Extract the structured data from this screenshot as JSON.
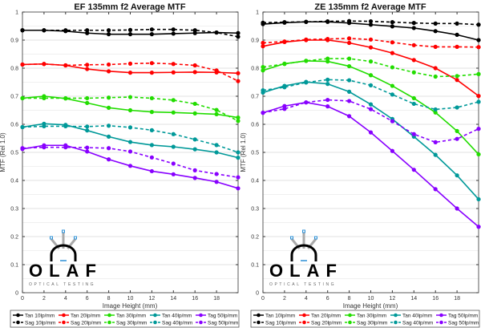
{
  "chart_data": [
    {
      "type": "line",
      "title": "EF 135mm f2 Average MTF",
      "xlabel": "Image Height (mm)",
      "ylabel": "MTF (Rel 1.0)",
      "xlim": [
        0,
        20
      ],
      "ylim": [
        0,
        1
      ],
      "xticks": [
        "0",
        "2",
        "4",
        "6",
        "8",
        "10",
        "12",
        "14",
        "16",
        "18"
      ],
      "yticks": [
        "0",
        "0.1",
        "0.2",
        "0.3",
        "0.4",
        "0.5",
        "0.6",
        "0.7",
        "0.8",
        "0.9",
        "1"
      ],
      "grid": true,
      "legend_position": "bottom",
      "x": [
        0,
        2,
        4,
        6,
        8,
        10,
        12,
        14,
        16,
        18,
        20
      ],
      "series": [
        {
          "name": "Tan 10lp/mm",
          "color": "#000000",
          "style": "solid",
          "values": [
            0.935,
            0.935,
            0.932,
            0.925,
            0.921,
            0.921,
            0.921,
            0.923,
            0.925,
            0.927,
            0.925
          ]
        },
        {
          "name": "Sag 10lp/mm",
          "color": "#000000",
          "style": "dashed",
          "values": [
            0.935,
            0.935,
            0.935,
            0.935,
            0.935,
            0.936,
            0.938,
            0.938,
            0.935,
            0.927,
            0.912
          ]
        },
        {
          "name": "Tan 20lp/mm",
          "color": "#ff0000",
          "style": "solid",
          "values": [
            0.813,
            0.815,
            0.81,
            0.797,
            0.789,
            0.784,
            0.784,
            0.785,
            0.786,
            0.785,
            0.782
          ]
        },
        {
          "name": "Sag 20lp/mm",
          "color": "#ff0000",
          "style": "dashed",
          "values": [
            0.813,
            0.815,
            0.81,
            0.812,
            0.813,
            0.816,
            0.818,
            0.815,
            0.81,
            0.792,
            0.754
          ]
        },
        {
          "name": "Tan 30lp/mm",
          "color": "#22dd00",
          "style": "solid",
          "values": [
            0.693,
            0.7,
            0.692,
            0.676,
            0.659,
            0.65,
            0.644,
            0.642,
            0.639,
            0.636,
            0.624
          ]
        },
        {
          "name": "Sag 30lp/mm",
          "color": "#22dd00",
          "style": "dashed",
          "values": [
            0.693,
            0.693,
            0.693,
            0.693,
            0.695,
            0.697,
            0.693,
            0.686,
            0.673,
            0.651,
            0.612
          ]
        },
        {
          "name": "Tan 40lp/mm",
          "color": "#009999",
          "style": "solid",
          "values": [
            0.59,
            0.602,
            0.598,
            0.578,
            0.556,
            0.537,
            0.526,
            0.52,
            0.511,
            0.5,
            0.481
          ]
        },
        {
          "name": "Sag 40lp/mm",
          "color": "#009999",
          "style": "dashed",
          "values": [
            0.59,
            0.593,
            0.593,
            0.592,
            0.595,
            0.589,
            0.579,
            0.565,
            0.546,
            0.526,
            0.5
          ]
        },
        {
          "name": "Tag 50lp/mm",
          "color": "#8800ff",
          "style": "solid",
          "values": [
            0.512,
            0.525,
            0.525,
            0.503,
            0.475,
            0.452,
            0.433,
            0.422,
            0.409,
            0.395,
            0.372
          ]
        },
        {
          "name": "Sag 50lp/mm",
          "color": "#8800ff",
          "style": "dashed",
          "values": [
            0.515,
            0.518,
            0.518,
            0.517,
            0.515,
            0.503,
            0.482,
            0.46,
            0.436,
            0.423,
            0.411
          ]
        }
      ]
    },
    {
      "type": "line",
      "title": "ZE 135mm f2 Average MTF",
      "xlabel": "Image Height (mm)",
      "ylabel": "MTF (Rel 1.0)",
      "xlim": [
        0,
        20
      ],
      "ylim": [
        0,
        1
      ],
      "xticks": [
        "0",
        "2",
        "4",
        "6",
        "8",
        "10",
        "12",
        "14",
        "16",
        "18"
      ],
      "yticks": [
        "0",
        "0.1",
        "0.2",
        "0.3",
        "0.4",
        "0.5",
        "0.6",
        "0.7",
        "0.8",
        "0.9",
        "1"
      ],
      "grid": true,
      "legend_position": "bottom",
      "x": [
        0,
        2,
        4,
        6,
        8,
        10,
        12,
        14,
        16,
        18,
        20
      ],
      "series": [
        {
          "name": "Tan 10lp/mm",
          "color": "#000000",
          "style": "solid",
          "values": [
            0.957,
            0.962,
            0.965,
            0.965,
            0.961,
            0.955,
            0.949,
            0.943,
            0.932,
            0.919,
            0.9
          ]
        },
        {
          "name": "Sag 10lp/mm",
          "color": "#000000",
          "style": "dashed",
          "values": [
            0.962,
            0.964,
            0.965,
            0.967,
            0.968,
            0.967,
            0.964,
            0.961,
            0.959,
            0.959,
            0.955
          ]
        },
        {
          "name": "Tan 20lp/mm",
          "color": "#ff0000",
          "style": "solid",
          "values": [
            0.878,
            0.893,
            0.9,
            0.9,
            0.89,
            0.874,
            0.854,
            0.829,
            0.8,
            0.758,
            0.701
          ]
        },
        {
          "name": "Sag 20lp/mm",
          "color": "#ff0000",
          "style": "dashed",
          "values": [
            0.89,
            0.895,
            0.902,
            0.904,
            0.906,
            0.902,
            0.892,
            0.882,
            0.876,
            0.876,
            0.875
          ]
        },
        {
          "name": "Tan 30lp/mm",
          "color": "#22dd00",
          "style": "solid",
          "values": [
            0.792,
            0.816,
            0.826,
            0.824,
            0.807,
            0.775,
            0.737,
            0.693,
            0.642,
            0.576,
            0.493
          ]
        },
        {
          "name": "Sag 30lp/mm",
          "color": "#22dd00",
          "style": "dashed",
          "values": [
            0.804,
            0.815,
            0.826,
            0.834,
            0.834,
            0.824,
            0.803,
            0.785,
            0.77,
            0.772,
            0.779
          ]
        },
        {
          "name": "Tan 40lp/mm",
          "color": "#009999",
          "style": "solid",
          "values": [
            0.713,
            0.737,
            0.751,
            0.744,
            0.716,
            0.671,
            0.619,
            0.556,
            0.491,
            0.418,
            0.333
          ]
        },
        {
          "name": "Sag 40lp/mm",
          "color": "#009999",
          "style": "dashed",
          "values": [
            0.721,
            0.732,
            0.749,
            0.759,
            0.757,
            0.739,
            0.706,
            0.673,
            0.653,
            0.66,
            0.68
          ]
        },
        {
          "name": "Tag 50lp/mm",
          "color": "#8800ff",
          "style": "solid",
          "values": [
            0.641,
            0.665,
            0.678,
            0.664,
            0.629,
            0.571,
            0.505,
            0.438,
            0.369,
            0.3,
            0.235
          ]
        },
        {
          "name": "Sag 50lp/mm",
          "color": "#8800ff",
          "style": "dashed",
          "values": [
            0.641,
            0.655,
            0.678,
            0.687,
            0.683,
            0.654,
            0.611,
            0.565,
            0.536,
            0.548,
            0.584
          ]
        }
      ]
    }
  ],
  "watermark": {
    "logo_text": "OLAF",
    "tagline": "OPTICAL TESTING"
  }
}
